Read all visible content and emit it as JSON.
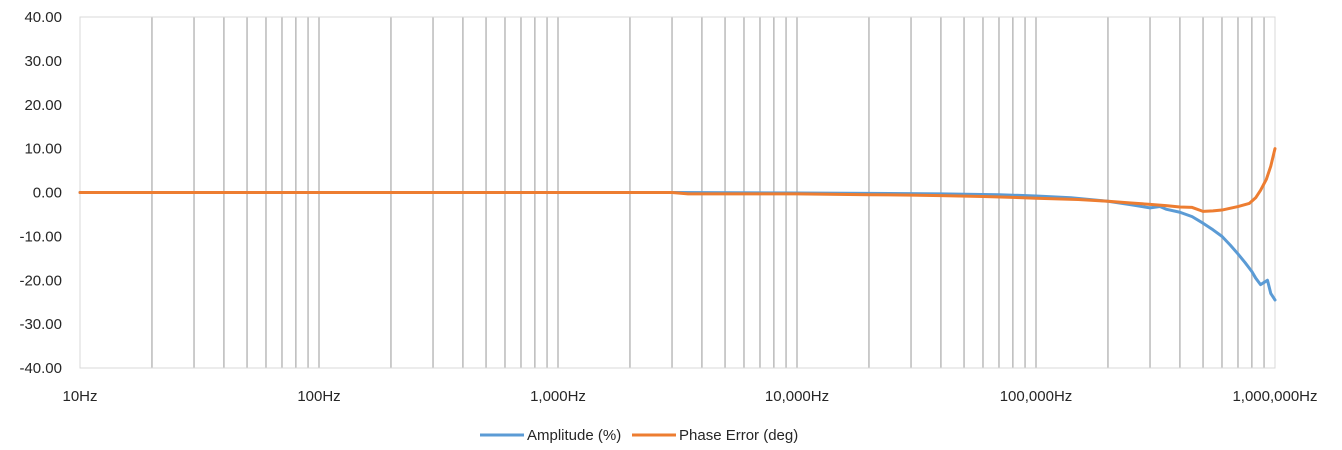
{
  "chart_data": {
    "type": "line",
    "title": "",
    "xlabel": "",
    "ylabel": "",
    "x_scale": "log",
    "xlim": [
      10,
      1000000
    ],
    "ylim": [
      -40,
      40
    ],
    "x_tick_values": [
      10,
      100,
      1000,
      10000,
      100000,
      1000000
    ],
    "x_tick_labels": [
      "10Hz",
      "100Hz",
      "1,000Hz",
      "10,000Hz",
      "100,000Hz",
      "1,000,000Hz"
    ],
    "y_tick_values": [
      40,
      30,
      20,
      10,
      0,
      -10,
      -20,
      -30,
      -40
    ],
    "y_tick_labels": [
      "40.00",
      "30.00",
      "20.00",
      "10.00",
      "0.00",
      "-10.00",
      "-20.00",
      "-30.00",
      "-40.00"
    ],
    "grid": "vertical-minor",
    "legend_position": "bottom",
    "series": [
      {
        "name": "Amplitude (%)",
        "color": "#5b9bd5",
        "points": [
          [
            10,
            0
          ],
          [
            1000,
            0
          ],
          [
            3000,
            0
          ],
          [
            10000,
            -0.1
          ],
          [
            20000,
            -0.2
          ],
          [
            40000,
            -0.3
          ],
          [
            70000,
            -0.5
          ],
          [
            100000,
            -0.8
          ],
          [
            140000,
            -1.2
          ],
          [
            200000,
            -2.0
          ],
          [
            250000,
            -2.8
          ],
          [
            300000,
            -3.5
          ],
          [
            330000,
            -3.2
          ],
          [
            350000,
            -3.8
          ],
          [
            400000,
            -4.5
          ],
          [
            450000,
            -5.5
          ],
          [
            500000,
            -7.0
          ],
          [
            550000,
            -8.5
          ],
          [
            600000,
            -10.0
          ],
          [
            650000,
            -12.0
          ],
          [
            700000,
            -14.0
          ],
          [
            750000,
            -16.0
          ],
          [
            800000,
            -18.0
          ],
          [
            830000,
            -19.5
          ],
          [
            870000,
            -21.0
          ],
          [
            900000,
            -20.5
          ],
          [
            930000,
            -20.0
          ],
          [
            960000,
            -23.0
          ],
          [
            1000000,
            -24.5
          ]
        ]
      },
      {
        "name": "Phase Error (deg)",
        "color": "#ed7d31",
        "points": [
          [
            10,
            0
          ],
          [
            3000,
            0
          ],
          [
            3500,
            -0.3
          ],
          [
            10000,
            -0.3
          ],
          [
            20000,
            -0.5
          ],
          [
            30000,
            -0.6
          ],
          [
            40000,
            -0.7
          ],
          [
            60000,
            -0.9
          ],
          [
            80000,
            -1.1
          ],
          [
            100000,
            -1.3
          ],
          [
            150000,
            -1.6
          ],
          [
            200000,
            -2.0
          ],
          [
            250000,
            -2.4
          ],
          [
            300000,
            -2.7
          ],
          [
            350000,
            -3.0
          ],
          [
            400000,
            -3.3
          ],
          [
            450000,
            -3.4
          ],
          [
            500000,
            -4.3
          ],
          [
            550000,
            -4.2
          ],
          [
            600000,
            -4.0
          ],
          [
            700000,
            -3.2
          ],
          [
            780000,
            -2.5
          ],
          [
            830000,
            -1.2
          ],
          [
            870000,
            0.5
          ],
          [
            920000,
            3.0
          ],
          [
            960000,
            6.0
          ],
          [
            1000000,
            10.0
          ]
        ]
      }
    ]
  }
}
